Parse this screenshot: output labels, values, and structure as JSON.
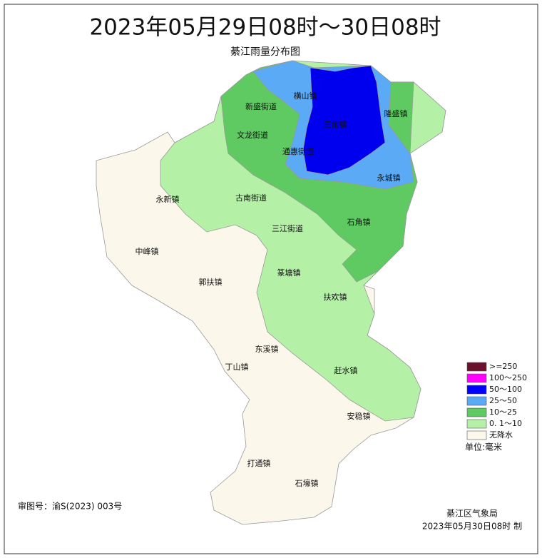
{
  "header": {
    "title": "2023年05月29日08时～30日08时",
    "subtitle": "綦江雨量分布图"
  },
  "towns": [
    "横山镇",
    "新盛街道",
    "隆盛镇",
    "三角镇",
    "文龙街道",
    "通惠街道",
    "永城镇",
    "永新镇",
    "古南街道",
    "石角镇",
    "三江街道",
    "中峰镇",
    "郭扶镇",
    "篆塘镇",
    "扶欢镇",
    "东溪镇",
    "丁山镇",
    "赶水镇",
    "安稳镇",
    "打通镇",
    "石壕镇"
  ],
  "legend": {
    "items": [
      {
        "label": ">=250",
        "color": "#6b0f2e"
      },
      {
        "label": "100～250",
        "color": "#ff00ff"
      },
      {
        "label": "50～100",
        "color": "#0000ff"
      },
      {
        "label": "25～50",
        "color": "#5aaaf5"
      },
      {
        "label": "10～25",
        "color": "#5fca62"
      },
      {
        "label": "0. 1～10",
        "color": "#b4f0a6"
      },
      {
        "label": "无降水",
        "color": "#fbf7ea"
      }
    ],
    "unit": "单位:毫米"
  },
  "footer": {
    "approval": "审图号：渝S(2023) 003号",
    "agency": "綦江区气象局",
    "made": "2023年05月30日08时  制"
  }
}
